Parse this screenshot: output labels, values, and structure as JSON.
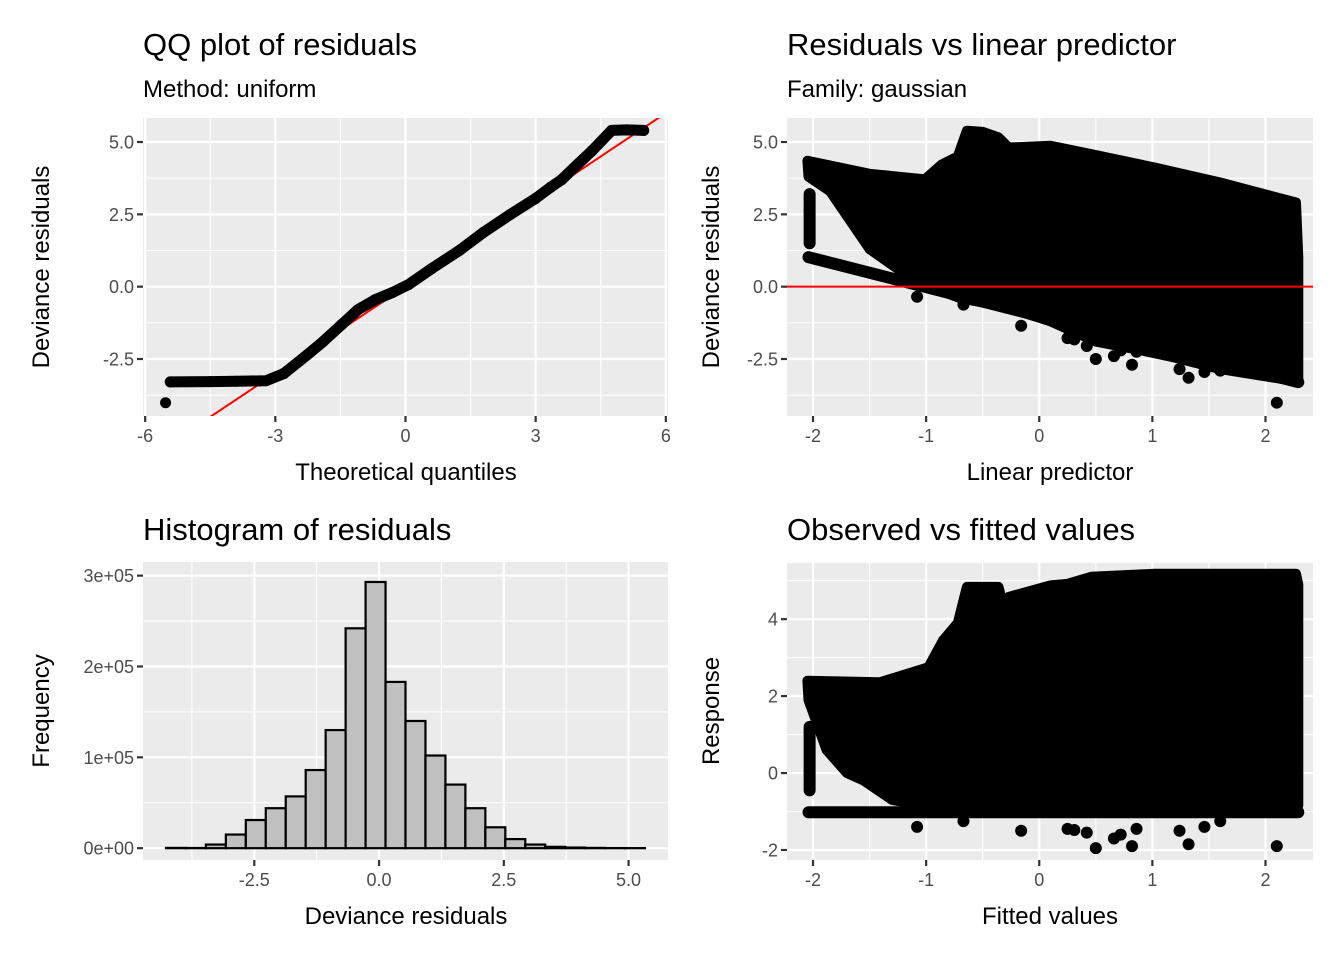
{
  "colors": {
    "panel_background": "#ebebeb",
    "grid": "#ffffff",
    "points": "#000000",
    "reference_line": "#ff0000",
    "histogram_fill": "#c0c0c0",
    "histogram_outline": "#000000"
  },
  "chart_data": [
    {
      "type": "line",
      "id": "qq",
      "title": "QQ plot of residuals",
      "subtitle": "Method: uniform",
      "xlabel": "Theoretical quantiles",
      "ylabel": "Deviance residuals",
      "xlim": [
        -6.05,
        6.05
      ],
      "ylim": [
        -4.47,
        5.83
      ],
      "xticks": [
        -6,
        -3,
        0,
        3,
        6
      ],
      "xtick_labels": [
        "-6",
        "-3",
        "0",
        "3",
        "6"
      ],
      "yticks": [
        -2.5,
        0,
        2.5,
        5
      ],
      "ytick_labels": [
        "-2.5",
        "0.0",
        "2.5",
        "5.0"
      ],
      "grid": true,
      "series": [
        {
          "name": "residual quantiles",
          "x": [
            -5.42,
            -4.5,
            -3.9,
            -3.21,
            -2.8,
            -2.26,
            -1.9,
            -1.47,
            -1.1,
            -0.7,
            -0.3,
            0.07,
            0.6,
            1.24,
            1.8,
            2.41,
            3.0,
            3.34,
            3.6,
            3.96,
            4.3,
            4.75,
            5.1,
            5.49
          ],
          "y": [
            -3.29,
            -3.28,
            -3.27,
            -3.25,
            -3.0,
            -2.35,
            -1.9,
            -1.31,
            -0.8,
            -0.45,
            -0.2,
            0.07,
            0.62,
            1.25,
            1.88,
            2.49,
            3.05,
            3.43,
            3.7,
            4.22,
            4.7,
            5.4,
            5.42,
            5.4
          ]
        },
        {
          "name": "outlier",
          "x": [
            -5.53
          ],
          "y": [
            -4.01
          ]
        }
      ],
      "reference_line": {
        "intercept": 0,
        "slope": 1
      }
    },
    {
      "type": "scatter",
      "id": "resid_vs_lp",
      "title": "Residuals vs linear predictor",
      "subtitle": "Family: gaussian",
      "xlabel": "Linear predictor",
      "ylabel": "Deviance residuals",
      "xlim": [
        -2.23,
        2.42
      ],
      "ylim": [
        -4.47,
        5.83
      ],
      "xticks": [
        -2,
        -1,
        0,
        1,
        2
      ],
      "xtick_labels": [
        "-2",
        "-1",
        "0",
        "1",
        "2"
      ],
      "yticks": [
        -2.5,
        0,
        2.5,
        5
      ],
      "ytick_labels": [
        "-2.5",
        "0.0",
        "2.5",
        "5.0"
      ],
      "grid": true,
      "hline": 0,
      "dense_region_outline": {
        "x": [
          -2.05,
          -1.5,
          -1.01,
          -0.86,
          -0.72,
          -0.64,
          -0.5,
          -0.36,
          -0.27,
          0.1,
          0.46,
          1.02,
          1.6,
          2.27,
          2.29,
          2.29,
          1.6,
          1.2,
          0.9,
          0.5,
          0.1,
          -0.3,
          -0.7,
          -1.1,
          -1.5,
          -1.85,
          -2.04
        ],
        "y": [
          4.35,
          3.9,
          3.71,
          4.23,
          4.5,
          5.39,
          5.35,
          5.16,
          4.81,
          4.87,
          4.58,
          4.12,
          3.6,
          2.91,
          1.0,
          -3.28,
          -2.85,
          -2.45,
          -2.2,
          -1.9,
          -1.2,
          -0.7,
          -0.4,
          0.2,
          1.3,
          3.3,
          3.8
        ]
      },
      "bands": [
        {
          "name": "lower diagonal band",
          "x": [
            -2.04,
            2.29
          ],
          "y": [
            1.02,
            -3.3
          ]
        },
        {
          "name": "left vertical strip",
          "x": [
            -2.03,
            -2.03
          ],
          "y": [
            1.5,
            3.2
          ]
        }
      ],
      "outliers": {
        "x": [
          -1.08,
          -0.67,
          -0.16,
          0.25,
          0.31,
          0.42,
          0.5,
          0.66,
          0.72,
          0.82,
          0.86,
          1.24,
          1.32,
          1.46,
          1.6,
          1.96,
          2.1
        ],
        "y": [
          -0.35,
          -0.62,
          -1.35,
          -1.78,
          -1.82,
          -2.05,
          -2.5,
          -2.4,
          -2.2,
          -2.7,
          -2.25,
          -2.85,
          -3.15,
          -2.95,
          -2.9,
          -2.8,
          -4.01
        ]
      }
    },
    {
      "type": "bar",
      "id": "histogram",
      "title": "Histogram of residuals",
      "xlabel": "Deviance residuals",
      "ylabel": "Frequency",
      "xlim": [
        -4.73,
        5.79
      ],
      "ylim": [
        -13000,
        315000
      ],
      "xticks": [
        -2.5,
        0,
        2.5,
        5
      ],
      "xtick_labels": [
        "-2.5",
        "0.0",
        "2.5",
        "5.0"
      ],
      "yticks": [
        0,
        100000,
        200000,
        300000
      ],
      "ytick_labels": [
        "0e+00",
        "1e+05",
        "2e+05",
        "3e+05"
      ],
      "grid": true,
      "bin_width": 0.4,
      "bin_starts": [
        -4.27,
        -3.87,
        -3.47,
        -3.07,
        -2.67,
        -2.27,
        -1.87,
        -1.47,
        -1.07,
        -0.67,
        -0.27,
        0.13,
        0.53,
        0.93,
        1.33,
        1.73,
        2.13,
        2.53,
        2.93,
        3.33,
        3.73,
        4.13,
        4.53,
        4.93
      ],
      "values": [
        300,
        200,
        4000,
        15000,
        31000,
        44000,
        57000,
        86000,
        130000,
        242000,
        293000,
        183000,
        140000,
        102000,
        70000,
        44000,
        23000,
        10000,
        4000,
        1500,
        700,
        300,
        100,
        50
      ]
    },
    {
      "type": "scatter",
      "id": "obs_vs_fitted",
      "title": "Observed vs fitted values",
      "xlabel": "Fitted values",
      "ylabel": "Response",
      "xlim": [
        -2.23,
        2.42
      ],
      "ylim": [
        -2.26,
        5.46
      ],
      "xticks": [
        -2,
        -1,
        0,
        1,
        2
      ],
      "xtick_labels": [
        "-2",
        "-1",
        "0",
        "1",
        "2"
      ],
      "yticks": [
        -2,
        0,
        2,
        4
      ],
      "ytick_labels": [
        "-2",
        "0",
        "2",
        "4"
      ],
      "grid": true,
      "dense_region_outline": {
        "x": [
          -2.05,
          -1.41,
          -0.98,
          -0.85,
          -0.72,
          -0.64,
          -0.36,
          -0.3,
          -0.27,
          0.1,
          0.25,
          0.46,
          1.02,
          2.27,
          2.29,
          2.29,
          -0.5,
          -1.0,
          -1.3,
          -1.55,
          -1.7,
          -1.88,
          -2.04
        ],
        "y": [
          2.4,
          2.36,
          2.75,
          3.45,
          3.9,
          4.84,
          4.84,
          4.14,
          4.58,
          4.88,
          4.92,
          5.1,
          5.18,
          5.18,
          4.9,
          -0.85,
          -0.85,
          -0.85,
          -0.7,
          -0.2,
          0.0,
          0.6,
          1.9
        ]
      },
      "bands": [
        {
          "name": "bottom horizontal band",
          "x": [
            -2.04,
            2.29
          ],
          "y": [
            -1.02,
            -1.02
          ]
        },
        {
          "name": "left vertical strip",
          "x": [
            -2.03,
            -2.03
          ],
          "y": [
            -0.45,
            1.2
          ]
        }
      ],
      "outliers": {
        "x": [
          -1.08,
          -0.67,
          -0.16,
          0.25,
          0.31,
          0.42,
          0.5,
          0.66,
          0.72,
          0.82,
          0.86,
          1.24,
          1.32,
          1.46,
          1.6,
          2.1
        ],
        "y": [
          -1.4,
          -1.25,
          -1.5,
          -1.45,
          -1.48,
          -1.55,
          -1.95,
          -1.7,
          -1.6,
          -1.9,
          -1.45,
          -1.5,
          -1.85,
          -1.4,
          -1.25,
          -1.9
        ]
      }
    }
  ]
}
